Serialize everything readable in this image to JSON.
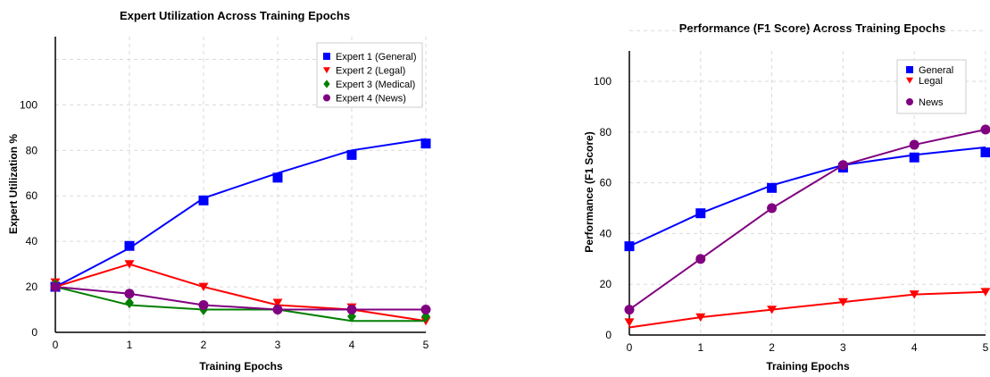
{
  "chart_data": [
    {
      "type": "line",
      "title": "Expert Utilization Across Training Epochs",
      "xlabel": "Training Epochs",
      "ylabel": "Expert Utilization %",
      "x": [
        0,
        1,
        2,
        3,
        4,
        5
      ],
      "xticks": [
        "0",
        "1",
        "2",
        "3",
        "4",
        "5"
      ],
      "yticks": [
        "0",
        "20",
        "40",
        "60",
        "80",
        "100"
      ],
      "xlim": [
        0,
        5
      ],
      "ylim": [
        0,
        130
      ],
      "grid": true,
      "legend_position": "top-right",
      "series": [
        {
          "name": "Expert 1 (General)",
          "color": "#0000ff",
          "marker": "square",
          "values": [
            20,
            38,
            58,
            68,
            78,
            83
          ],
          "line_values": [
            20,
            37,
            59,
            70,
            80,
            85
          ]
        },
        {
          "name": "Expert 2 (Legal)",
          "color": "#ff0000",
          "marker": "triangle-down",
          "values": [
            22,
            30,
            20,
            13,
            11,
            5
          ],
          "line_values": [
            20,
            30,
            20,
            12,
            10,
            5
          ]
        },
        {
          "name": "Expert 3 (Medical)",
          "color": "#008000",
          "marker": "diamond",
          "values": [
            21,
            13,
            10,
            10,
            7,
            7
          ],
          "line_values": [
            20,
            12,
            10,
            10,
            5,
            5
          ]
        },
        {
          "name": "Expert 4 (News)",
          "color": "#800080",
          "marker": "circle",
          "values": [
            20,
            17,
            12,
            10,
            10,
            10
          ],
          "line_values": [
            20,
            17,
            12,
            10,
            10,
            10
          ]
        }
      ]
    },
    {
      "type": "line",
      "title": "Performance (F1 Score) Across Training Epochs",
      "xlabel": "Training Epochs",
      "ylabel": "Performance (F1 Score)",
      "x": [
        0,
        1,
        2,
        3,
        4,
        5
      ],
      "xticks": [
        "0",
        "1",
        "2",
        "3",
        "4",
        "5"
      ],
      "yticks": [
        "0",
        "20",
        "40",
        "60",
        "80",
        "100"
      ],
      "xlim": [
        0,
        5
      ],
      "ylim": [
        0,
        112
      ],
      "grid": true,
      "legend_position": "top-right",
      "series": [
        {
          "name": "General",
          "color": "#0000ff",
          "marker": "square",
          "values": [
            35,
            48,
            58,
            66,
            70,
            72
          ],
          "line_values": [
            35,
            48,
            59,
            67,
            71,
            74
          ]
        },
        {
          "name": "Legal",
          "color": "#ff0000",
          "marker": "triangle-down",
          "values": [
            5,
            7,
            10,
            13,
            16,
            17
          ],
          "line_values": [
            3,
            7,
            10,
            13,
            16,
            17
          ]
        },
        {
          "name": "News",
          "color": "#800080",
          "marker": "circle",
          "values": [
            10,
            30,
            50,
            67,
            75,
            81
          ],
          "line_values": [
            10,
            30,
            50,
            67,
            75,
            81
          ]
        }
      ]
    }
  ]
}
